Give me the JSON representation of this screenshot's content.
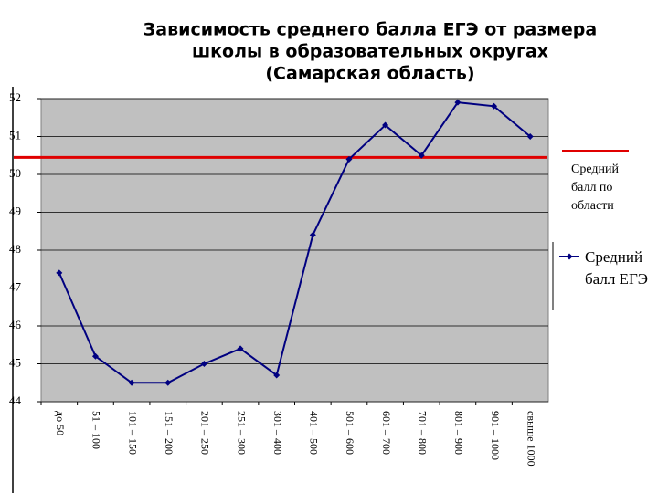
{
  "chart_data": {
    "type": "line",
    "title": [
      "Зависимость среднего балла ЕГЭ от размера",
      "школы  в образовательных округах",
      "(Самарская область)"
    ],
    "categories": [
      "до 50",
      "51 – 100",
      "101 – 150",
      "151 – 200",
      "201 – 250",
      "251 – 300",
      "301 – 400",
      "401 – 500",
      "501 – 600",
      "601 – 700",
      "701 – 800",
      "801 – 900",
      "901 – 1000",
      "свыше 1000"
    ],
    "series": [
      {
        "name": "Средний балл ЕГЭ",
        "color": "#000080",
        "values": [
          47.4,
          45.2,
          44.5,
          44.5,
          45.0,
          45.4,
          44.7,
          48.4,
          50.4,
          51.3,
          50.5,
          51.9,
          51.8,
          51.0
        ]
      }
    ],
    "reference_line": {
      "value": 50.45,
      "label": "Средний балл по области",
      "color": "#e00000"
    },
    "ylim": [
      44,
      52
    ],
    "yticks": [
      44,
      45,
      46,
      47,
      48,
      49,
      50,
      51,
      52
    ],
    "grid": true,
    "legend": "right"
  }
}
